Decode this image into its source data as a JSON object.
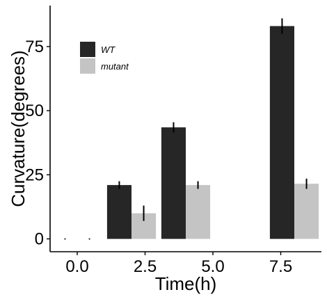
{
  "chart_data": {
    "type": "bar",
    "title": "",
    "xlabel": "Time(h)",
    "ylabel": "Curvature(degrees)",
    "xlim": [
      -1.0,
      9.0
    ],
    "ylim": [
      -5,
      91
    ],
    "x_ticks": [
      0.0,
      2.5,
      5.0,
      7.5
    ],
    "x_tick_labels": [
      "0.0",
      "2.5",
      "5.0",
      "7.5"
    ],
    "y_ticks": [
      0,
      25,
      50,
      75
    ],
    "y_tick_labels": [
      "0",
      "25",
      "50",
      "75"
    ],
    "x": [
      0,
      2,
      4,
      8
    ],
    "series": [
      {
        "name": "WT",
        "color": "#262626",
        "values": [
          0,
          21,
          43.5,
          83
        ],
        "errors": [
          0,
          1.5,
          2,
          3
        ]
      },
      {
        "name": "mutant",
        "color": "#c4c4c4",
        "values": [
          0,
          10,
          21,
          21.5
        ],
        "errors": [
          0,
          3,
          1.5,
          2
        ]
      }
    ],
    "legend_position": "top-left",
    "grid": false
  }
}
